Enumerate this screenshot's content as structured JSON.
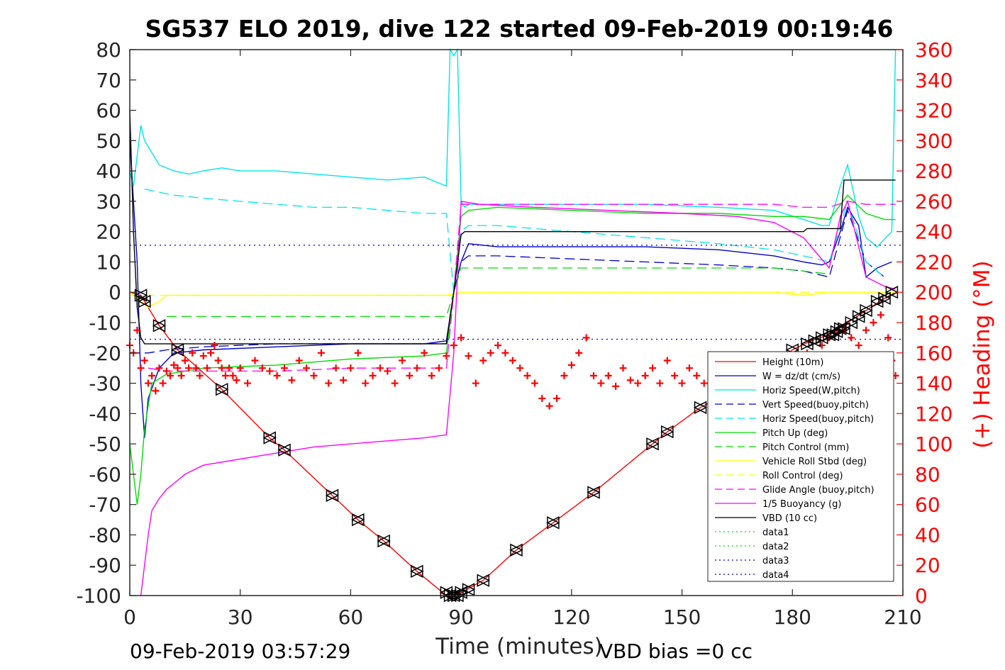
{
  "chart_data": {
    "type": "line",
    "title": "SG537 ELO 2019, dive 122 started 09-Feb-2019 00:19:46",
    "xlabel": "Time (minutes)",
    "ylabel": "",
    "y2label": "(+) Heading (°M)",
    "xlim": [
      0,
      210
    ],
    "ylim": [
      -100,
      80
    ],
    "y2lim": [
      0,
      360
    ],
    "xticks": [
      0,
      30,
      60,
      90,
      120,
      150,
      180,
      210
    ],
    "yticks": [
      -100,
      -90,
      -80,
      -70,
      -60,
      -50,
      -40,
      -30,
      -20,
      -10,
      0,
      10,
      20,
      30,
      40,
      50,
      60,
      70,
      80
    ],
    "y2ticks": [
      0,
      20,
      40,
      60,
      80,
      100,
      120,
      140,
      160,
      180,
      200,
      220,
      240,
      260,
      280,
      300,
      320,
      340,
      360
    ],
    "grid": false,
    "legend_position": "lower-right",
    "footer_left": "09-Feb-2019 03:57:29",
    "footer_right": "VBD bias =0 cc",
    "series": [
      {
        "name": "Height (10m)",
        "color": "#ff0000",
        "style": "solid",
        "x": [
          0,
          3,
          4,
          8,
          13,
          25,
          38,
          42,
          55,
          62,
          69,
          78,
          86,
          88,
          90,
          96,
          105,
          115,
          126,
          142,
          146,
          155,
          170,
          180,
          185,
          190,
          195,
          200,
          205,
          208
        ],
        "y": [
          0,
          -1,
          -3,
          -11,
          -19,
          -32,
          -48,
          -52,
          -67,
          -75,
          -82,
          -92,
          -100,
          -100,
          -99,
          -95,
          -85,
          -76,
          -66,
          -50,
          -46,
          -38,
          -28,
          -19,
          -16,
          -14,
          -10,
          -6,
          -2,
          0
        ]
      },
      {
        "name": "W = dz/dt (cm/s)",
        "color": "#0000cc",
        "style": "solid",
        "x": [
          0,
          2,
          3,
          4,
          5,
          8,
          12,
          20,
          40,
          60,
          80,
          86,
          88,
          90,
          92,
          100,
          120,
          140,
          160,
          175,
          183,
          188,
          190,
          193,
          195,
          198,
          200,
          203,
          207
        ],
        "y": [
          50,
          10,
          -30,
          -48,
          -35,
          -25,
          -20,
          -19,
          -18,
          -17,
          -17,
          -16,
          0,
          10,
          16,
          15,
          15,
          15,
          14,
          12,
          10,
          9,
          10,
          20,
          28,
          22,
          5,
          8,
          10
        ]
      },
      {
        "name": "Horiz Speed(W,pitch)",
        "color": "#00e5e5",
        "style": "solid",
        "x": [
          0,
          1,
          2,
          3,
          4,
          5,
          8,
          12,
          16,
          20,
          25,
          30,
          40,
          50,
          60,
          70,
          80,
          86,
          87,
          88,
          89,
          90,
          91,
          92,
          100,
          120,
          140,
          160,
          175,
          183,
          188,
          190,
          193,
          195,
          198,
          200,
          203,
          207,
          208
        ],
        "y": [
          40,
          35,
          45,
          55,
          50,
          48,
          42,
          40,
          39,
          40,
          41,
          40,
          40,
          39,
          38,
          37,
          38,
          35,
          80,
          78,
          80,
          30,
          28,
          29,
          29,
          29,
          29,
          28,
          27,
          24,
          22,
          22,
          35,
          42,
          25,
          18,
          15,
          20,
          80
        ]
      },
      {
        "name": "Vert Speed(buoy,pitch)",
        "color": "#0000cc",
        "style": "dashed",
        "x": [
          0,
          5,
          10,
          20,
          40,
          60,
          80,
          86,
          88,
          90,
          92,
          100,
          120,
          140,
          160,
          175,
          183,
          190,
          195,
          200,
          205
        ],
        "y": [
          -20,
          -20,
          -19,
          -18,
          -17,
          -17,
          -17,
          -17,
          0,
          10,
          12,
          12,
          11,
          10,
          9,
          8,
          7,
          5,
          27,
          10,
          5
        ]
      },
      {
        "name": "Horiz Speed(buoy,pitch)",
        "color": "#00e5e5",
        "style": "dashed",
        "x": [
          4,
          8,
          12,
          20,
          30,
          40,
          50,
          60,
          70,
          80,
          86,
          88,
          90,
          92,
          100,
          120,
          140,
          160,
          175,
          183,
          190,
          195,
          200,
          205
        ],
        "y": [
          34,
          33,
          32,
          31,
          30,
          29,
          28,
          28,
          27,
          26,
          26,
          0,
          20,
          22,
          22,
          20,
          18,
          16,
          14,
          12,
          10,
          30,
          10,
          5
        ]
      },
      {
        "name": "Pitch Up (deg)",
        "color": "#00dd00",
        "style": "solid",
        "x": [
          0,
          2,
          3,
          4,
          6,
          10,
          20,
          40,
          60,
          80,
          86,
          88,
          90,
          92,
          100,
          120,
          140,
          160,
          175,
          183,
          190,
          195,
          200,
          205,
          208
        ],
        "y": [
          -50,
          -70,
          -60,
          -45,
          -30,
          -27,
          -25,
          -24,
          -22,
          -21,
          -20,
          0,
          25,
          27,
          28,
          27,
          26,
          26,
          25,
          25,
          24,
          32,
          26,
          24,
          24
        ]
      },
      {
        "name": "Pitch Control (mm)",
        "color": "#00dd00",
        "style": "dashed",
        "x": [
          10,
          20,
          40,
          60,
          80,
          86,
          88,
          90,
          100,
          120,
          140,
          160,
          175,
          183,
          190
        ],
        "y": [
          -8,
          -8,
          -8,
          -8,
          -8,
          -8,
          0,
          8,
          8,
          8,
          8,
          8,
          8,
          7,
          6
        ]
      },
      {
        "name": "Vehicle Roll Stbd (deg)",
        "color": "#ffff00",
        "style": "solid",
        "x": [
          0,
          5,
          8,
          10,
          20,
          30,
          40,
          50,
          60,
          70,
          80,
          86,
          88,
          90,
          100,
          120,
          140,
          160,
          175,
          183,
          190,
          200,
          208
        ],
        "y": [
          0,
          -5,
          -3,
          -1,
          -1,
          -1,
          -1,
          -1,
          -1,
          -1,
          -1,
          -1,
          -1,
          0,
          0,
          0,
          0,
          0,
          0,
          -1,
          0,
          0,
          0
        ]
      },
      {
        "name": "Roll Control (deg)",
        "color": "#ffff00",
        "style": "dashed",
        "x": [
          0,
          10,
          50,
          86,
          90,
          130,
          170,
          208
        ],
        "y": [
          -1,
          -1,
          -1,
          -1,
          0,
          0,
          0,
          0
        ]
      },
      {
        "name": "Glide Angle (buoy,pitch)",
        "color": "#ff00ff",
        "style": "dashed",
        "x": [
          5,
          10,
          20,
          40,
          60,
          80,
          86,
          88,
          90,
          100,
          120,
          140,
          160,
          175,
          183,
          190,
          195,
          200,
          205,
          208
        ],
        "y": [
          -25,
          -26,
          -26,
          -26,
          -25,
          -25,
          -25,
          0,
          29,
          29,
          29,
          29,
          29,
          29,
          28,
          28,
          30,
          29,
          29,
          29
        ]
      },
      {
        "name": "1/5 Buoyancy (g)",
        "color": "#ff00ff",
        "style": "solid",
        "x": [
          3,
          4,
          5,
          6,
          8,
          10,
          15,
          20,
          30,
          40,
          50,
          60,
          70,
          80,
          86,
          88,
          90,
          95,
          110,
          130,
          150,
          165,
          175,
          183,
          190,
          193,
          195,
          198,
          200,
          205,
          208
        ],
        "y": [
          -100,
          -90,
          -80,
          -72,
          -68,
          -65,
          -60,
          -57,
          -55,
          -53,
          -51,
          -50,
          -49,
          -48,
          -47,
          -20,
          30,
          29,
          28,
          27,
          26,
          25,
          23,
          18,
          8,
          25,
          30,
          15,
          5,
          2,
          1
        ]
      },
      {
        "name": "VBD (10 cc)",
        "color": "#000000",
        "style": "solid",
        "x": [
          0,
          1,
          2,
          3,
          4,
          5,
          10,
          30,
          60,
          86,
          87,
          88,
          90,
          91,
          100,
          130,
          160,
          183,
          184,
          193,
          194,
          208
        ],
        "y": [
          60,
          20,
          -5,
          -15,
          -17,
          -17,
          -17,
          -17,
          -17,
          -17,
          -8,
          0,
          19,
          20,
          20,
          20,
          20,
          20,
          21,
          21,
          37,
          37
        ]
      },
      {
        "name": "data1",
        "color": "#00dd00",
        "style": "dotted",
        "x": [],
        "y": []
      },
      {
        "name": "data2",
        "color": "#00dd00",
        "style": "dotted",
        "x": [],
        "y": []
      },
      {
        "name": "data3",
        "color": "#0000cc",
        "style": "dotted",
        "x": [
          0,
          210
        ],
        "y": [
          15.5,
          15.5
        ]
      },
      {
        "name": "data4",
        "color": "#0000cc",
        "style": "dotted",
        "x": [
          0,
          210
        ],
        "y": [
          -15.5,
          -15.5
        ]
      }
    ],
    "heading": {
      "color": "#ff0000",
      "marker": "+",
      "x": [
        0,
        1,
        2,
        3,
        4,
        5,
        6,
        7,
        8,
        9,
        10,
        11,
        12,
        13,
        14,
        15,
        16,
        17,
        18,
        19,
        20,
        21,
        22,
        23,
        24,
        25,
        26,
        27,
        28,
        29,
        30,
        32,
        34,
        36,
        38,
        40,
        42,
        44,
        46,
        48,
        50,
        52,
        54,
        56,
        58,
        60,
        62,
        64,
        66,
        68,
        70,
        72,
        74,
        76,
        78,
        80,
        82,
        84,
        86,
        88,
        90,
        92,
        94,
        96,
        98,
        100,
        102,
        104,
        106,
        108,
        110,
        112,
        114,
        116,
        118,
        120,
        122,
        124,
        126,
        128,
        130,
        132,
        134,
        136,
        138,
        140,
        142,
        144,
        146,
        148,
        150,
        152,
        154,
        156,
        158,
        160,
        162,
        164,
        166,
        168,
        170,
        172,
        174,
        176,
        178,
        180,
        182,
        184,
        186,
        188,
        190,
        192,
        194,
        196,
        198,
        200,
        202,
        204,
        206,
        207,
        208
      ],
      "y": [
        165,
        160,
        175,
        150,
        155,
        140,
        145,
        135,
        150,
        140,
        148,
        145,
        152,
        150,
        145,
        155,
        150,
        160,
        150,
        145,
        158,
        150,
        160,
        165,
        155,
        150,
        145,
        150,
        145,
        142,
        150,
        140,
        155,
        150,
        148,
        145,
        150,
        142,
        155,
        150,
        145,
        160,
        140,
        150,
        142,
        150,
        160,
        140,
        145,
        150,
        148,
        140,
        155,
        145,
        150,
        160,
        145,
        150,
        158,
        165,
        170,
        158,
        140,
        155,
        160,
        165,
        160,
        155,
        150,
        145,
        140,
        130,
        125,
        130,
        145,
        152,
        160,
        170,
        145,
        140,
        145,
        138,
        150,
        142,
        140,
        145,
        150,
        140,
        155,
        145,
        140,
        150,
        145,
        140,
        155,
        150,
        145,
        155,
        150,
        145,
        150,
        148,
        145,
        150,
        155,
        145,
        150,
        160,
        155,
        165,
        170,
        175,
        175,
        170,
        165,
        175,
        180,
        185,
        170,
        155,
        145
      ]
    },
    "markers": {
      "color": "#000000",
      "x": [
        3,
        4,
        8,
        13,
        25,
        38,
        42,
        55,
        62,
        69,
        78,
        86,
        87,
        88,
        89,
        90,
        92,
        96,
        105,
        115,
        126,
        142,
        146,
        155,
        180,
        184,
        186,
        188,
        190,
        191,
        192,
        193,
        194,
        196,
        198,
        200,
        203,
        205,
        207
      ],
      "y": [
        -1,
        -3,
        -11,
        -19,
        -32,
        -48,
        -52,
        -67,
        -75,
        -82,
        -92,
        -99,
        -100,
        -100,
        -100,
        -99,
        -98,
        -95,
        -85,
        -76,
        -66,
        -50,
        -46,
        -38,
        -19,
        -17,
        -16,
        -15,
        -14,
        -14,
        -13,
        -12,
        -12,
        -10,
        -8,
        -6,
        -3,
        -2,
        0
      ]
    }
  }
}
